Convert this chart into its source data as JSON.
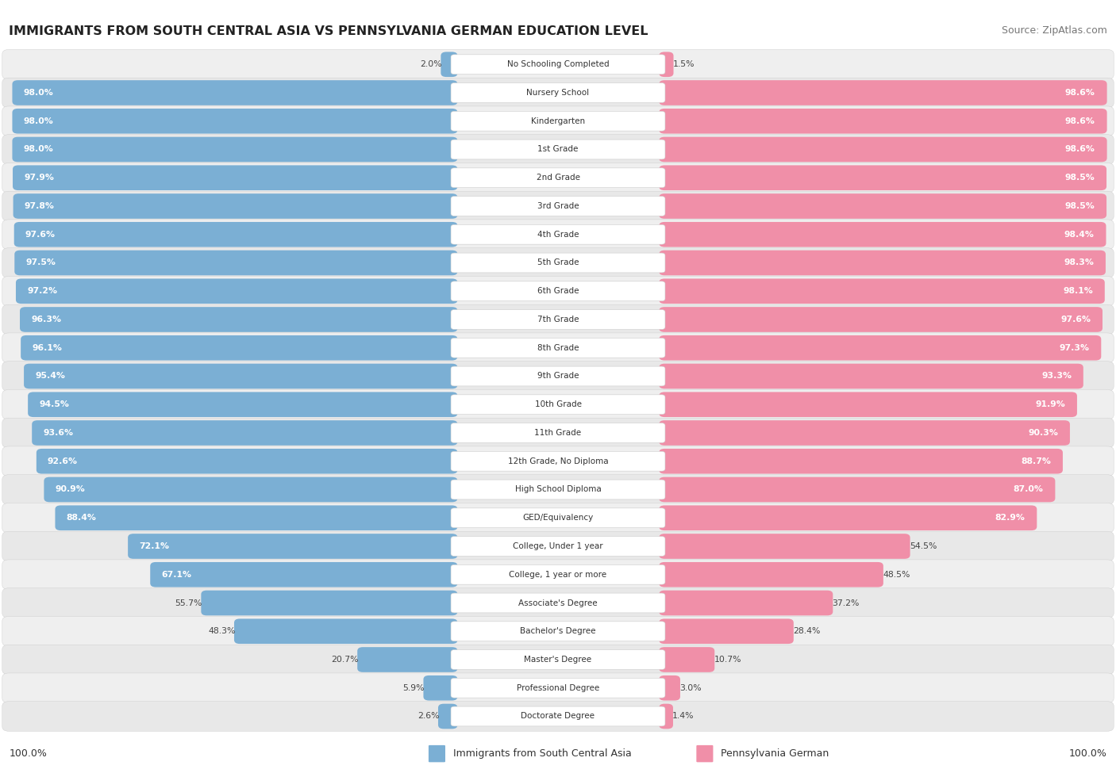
{
  "title": "IMMIGRANTS FROM SOUTH CENTRAL ASIA VS PENNSYLVANIA GERMAN EDUCATION LEVEL",
  "source": "Source: ZipAtlas.com",
  "categories": [
    "No Schooling Completed",
    "Nursery School",
    "Kindergarten",
    "1st Grade",
    "2nd Grade",
    "3rd Grade",
    "4th Grade",
    "5th Grade",
    "6th Grade",
    "7th Grade",
    "8th Grade",
    "9th Grade",
    "10th Grade",
    "11th Grade",
    "12th Grade, No Diploma",
    "High School Diploma",
    "GED/Equivalency",
    "College, Under 1 year",
    "College, 1 year or more",
    "Associate's Degree",
    "Bachelor's Degree",
    "Master's Degree",
    "Professional Degree",
    "Doctorate Degree"
  ],
  "left_values": [
    2.0,
    98.0,
    98.0,
    98.0,
    97.9,
    97.8,
    97.6,
    97.5,
    97.2,
    96.3,
    96.1,
    95.4,
    94.5,
    93.6,
    92.6,
    90.9,
    88.4,
    72.1,
    67.1,
    55.7,
    48.3,
    20.7,
    5.9,
    2.6
  ],
  "right_values": [
    1.5,
    98.6,
    98.6,
    98.6,
    98.5,
    98.5,
    98.4,
    98.3,
    98.1,
    97.6,
    97.3,
    93.3,
    91.9,
    90.3,
    88.7,
    87.0,
    82.9,
    54.5,
    48.5,
    37.2,
    28.4,
    10.7,
    3.0,
    1.4
  ],
  "left_color": "#7bafd4",
  "right_color": "#f08fa8",
  "left_legend": "Immigrants from South Central Asia",
  "right_legend": "Pennsylvania German",
  "left_footer": "100.0%",
  "right_footer": "100.0%"
}
